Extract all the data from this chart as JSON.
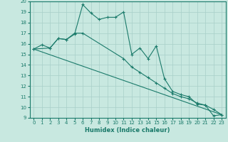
{
  "xlabel": "Humidex (Indice chaleur)",
  "bg_color": "#c8e8e0",
  "line_color": "#1a7a6a",
  "grid_color": "#a8cfc8",
  "xlim": [
    -0.5,
    23.5
  ],
  "ylim": [
    9,
    20
  ],
  "xticks": [
    0,
    1,
    2,
    3,
    4,
    5,
    6,
    7,
    8,
    9,
    10,
    11,
    12,
    13,
    14,
    15,
    16,
    17,
    18,
    19,
    20,
    21,
    22,
    23
  ],
  "yticks": [
    9,
    10,
    11,
    12,
    13,
    14,
    15,
    16,
    17,
    18,
    19,
    20
  ],
  "series": [
    {
      "x": [
        0,
        1,
        2,
        3,
        4,
        5,
        6,
        7,
        8,
        9,
        10,
        11,
        12,
        13,
        14,
        15,
        16,
        17,
        18,
        19,
        20,
        21,
        22,
        23
      ],
      "y": [
        15.5,
        15.9,
        15.6,
        16.5,
        16.4,
        16.9,
        19.7,
        18.9,
        18.3,
        18.5,
        18.5,
        19.0,
        15.0,
        15.6,
        14.6,
        15.8,
        12.7,
        11.5,
        11.2,
        11.0,
        10.3,
        10.2,
        9.2,
        9.3
      ],
      "marker": true
    },
    {
      "x": [
        0,
        2,
        3,
        4,
        5,
        6,
        11,
        12,
        13,
        14,
        15,
        16,
        17,
        18,
        19,
        20,
        21,
        22,
        23
      ],
      "y": [
        15.5,
        15.6,
        16.5,
        16.4,
        17.0,
        17.0,
        14.6,
        13.8,
        13.3,
        12.8,
        12.3,
        11.8,
        11.3,
        11.0,
        10.8,
        10.4,
        10.2,
        9.8,
        9.3
      ],
      "marker": true
    },
    {
      "x": [
        0,
        23
      ],
      "y": [
        15.5,
        9.3
      ],
      "marker": false
    }
  ]
}
